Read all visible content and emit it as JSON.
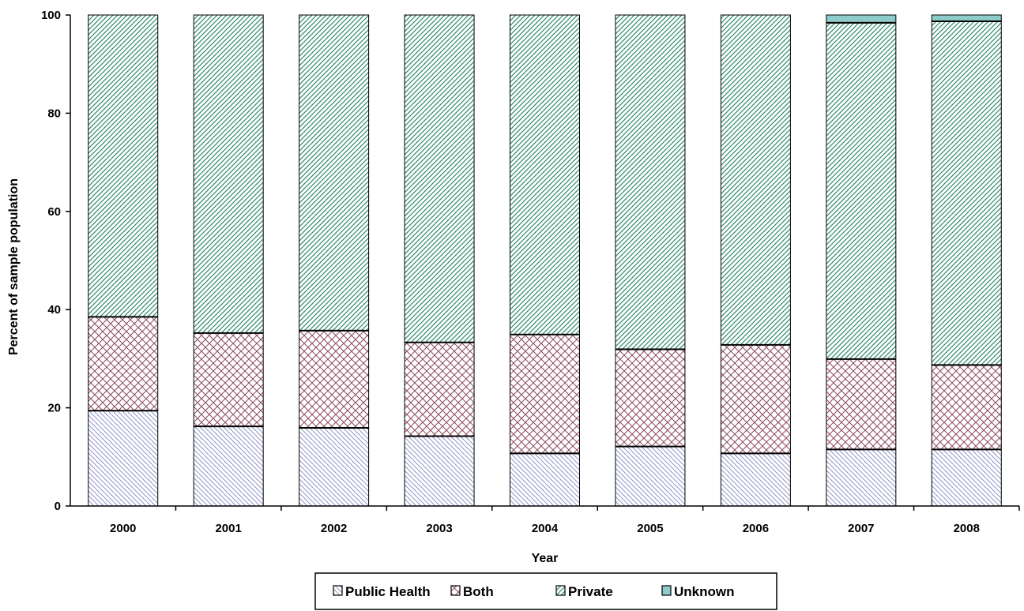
{
  "chart_data": {
    "type": "bar",
    "stacked": true,
    "title": "",
    "xlabel": "Year",
    "ylabel": "Percent of sample population",
    "ylim": [
      0,
      100
    ],
    "yticks": [
      0,
      20,
      40,
      60,
      80,
      100
    ],
    "grid": false,
    "legend_position": "bottom",
    "categories": [
      "2000",
      "2001",
      "2002",
      "2003",
      "2004",
      "2005",
      "2006",
      "2007",
      "2008"
    ],
    "series": [
      {
        "name": "Public Health",
        "values": [
          19.5,
          16.3,
          16.0,
          14.3,
          10.8,
          12.2,
          10.8,
          11.6,
          11.6
        ],
        "color": "#c8cde6",
        "pattern": "diagonal-lines-right"
      },
      {
        "name": "Both",
        "values": [
          19.1,
          19.0,
          19.8,
          19.1,
          24.2,
          19.8,
          22.1,
          18.4,
          17.2
        ],
        "color": "#8c4a5c",
        "pattern": "crosshatch"
      },
      {
        "name": "Private",
        "values": [
          61.4,
          64.7,
          64.2,
          66.6,
          65.0,
          68.0,
          67.1,
          68.5,
          70.0
        ],
        "color": "#4f9a80",
        "pattern": "diagonal-lines-left"
      },
      {
        "name": "Unknown",
        "values": [
          0,
          0,
          0,
          0,
          0,
          0,
          0,
          1.5,
          1.2
        ],
        "color": "#8ecbcb",
        "pattern": "solid"
      }
    ]
  }
}
